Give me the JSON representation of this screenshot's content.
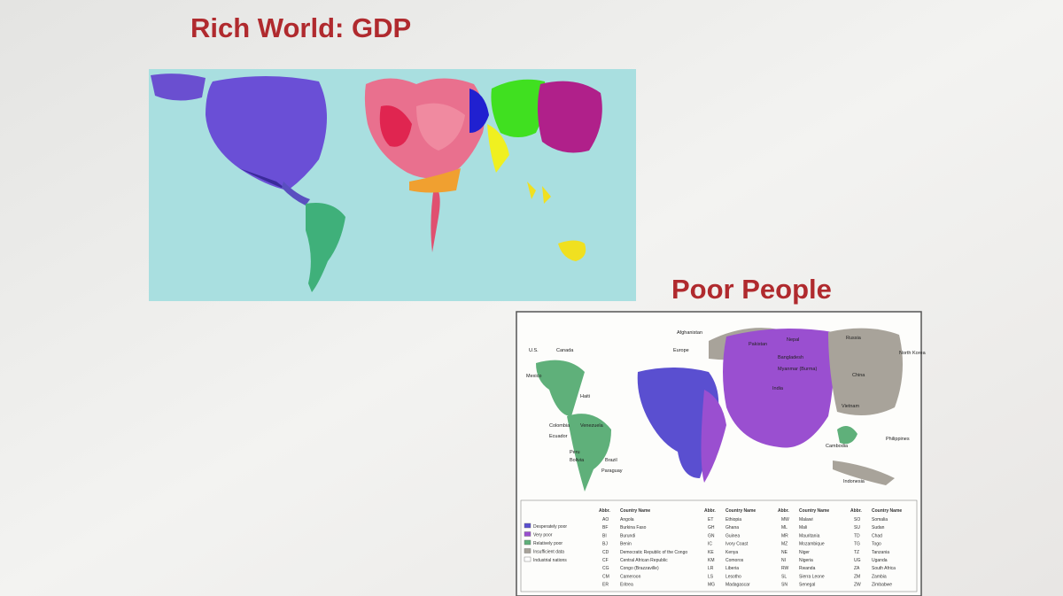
{
  "slide": {
    "titles": [
      "Rich World: GDP",
      "Poor People"
    ]
  },
  "poor_map": {
    "labels": [
      "U.S.",
      "Canada",
      "Mexico",
      "Haiti",
      "Colombia",
      "Venezuela",
      "Ecuador",
      "Peru",
      "Bolivia",
      "Brazil",
      "Paraguay",
      "Afghanistan",
      "Europe",
      "Pakistan",
      "Nepal",
      "Russia",
      "North Korea",
      "Bangladesh",
      "Myanmar (Burma)",
      "India",
      "China",
      "Vietnam",
      "Cambodia",
      "Philippines",
      "Indonesia"
    ],
    "legend": [
      {
        "label": "Desperately poor",
        "color": "#5a4fd0"
      },
      {
        "label": "Very poor",
        "color": "#9a4fd0"
      },
      {
        "label": "Relatively poor",
        "color": "#5fb07a"
      },
      {
        "label": "Insufficient data",
        "color": "#a8a39a"
      },
      {
        "label": "Industrial nations",
        "color": "#ffffff"
      }
    ],
    "table": {
      "header": [
        "Abbr.",
        "Country Name"
      ],
      "groups": [
        [
          [
            "AO",
            "Angola"
          ],
          [
            "BF",
            "Burkina Faso"
          ],
          [
            "BI",
            "Burundi"
          ],
          [
            "BJ",
            "Benin"
          ],
          [
            "CD",
            "Democratic Republic of the Congo"
          ],
          [
            "CF",
            "Central African Republic"
          ],
          [
            "CG",
            "Congo (Brazzaville)"
          ],
          [
            "CM",
            "Cameroon"
          ],
          [
            "ER",
            "Eritrea"
          ]
        ],
        [
          [
            "ET",
            "Ethiopia"
          ],
          [
            "GH",
            "Ghana"
          ],
          [
            "GN",
            "Guinea"
          ],
          [
            "IC",
            "Ivory Coast"
          ],
          [
            "KE",
            "Kenya"
          ],
          [
            "KM",
            "Comoros"
          ],
          [
            "LR",
            "Liberia"
          ],
          [
            "LS",
            "Lesotho"
          ],
          [
            "MG",
            "Madagascar"
          ]
        ],
        [
          [
            "MW",
            "Malawi"
          ],
          [
            "ML",
            "Mali"
          ],
          [
            "MR",
            "Mauritania"
          ],
          [
            "MZ",
            "Mozambique"
          ],
          [
            "NE",
            "Niger"
          ],
          [
            "NI",
            "Nigeria"
          ],
          [
            "RW",
            "Rwanda"
          ],
          [
            "SL",
            "Sierra Leone"
          ],
          [
            "SN",
            "Senegal"
          ]
        ],
        [
          [
            "SO",
            "Somalia"
          ],
          [
            "SU",
            "Sudan"
          ],
          [
            "TD",
            "Chad"
          ],
          [
            "TG",
            "Togo"
          ],
          [
            "TZ",
            "Tanzania"
          ],
          [
            "UG",
            "Uganda"
          ],
          [
            "ZA",
            "South Africa"
          ],
          [
            "ZM",
            "Zambia"
          ],
          [
            "ZW",
            "Zimbabwe"
          ]
        ]
      ]
    }
  }
}
